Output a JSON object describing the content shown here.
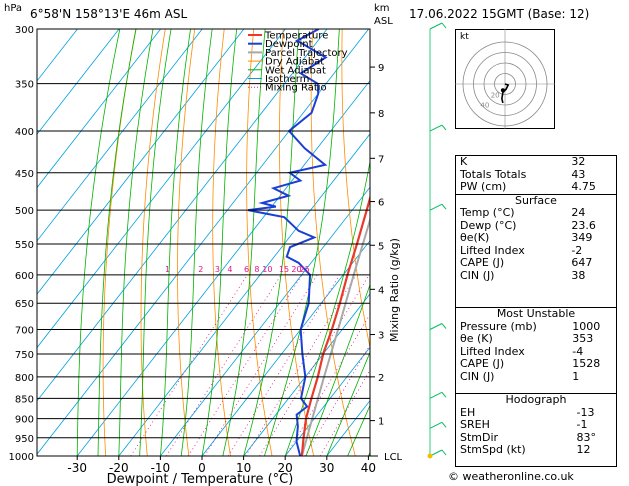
{
  "header": {
    "location": "6°58'N  158°13'E  46m  ASL",
    "hpa_label": "hPa",
    "km_label": "km",
    "asl_label": "ASL",
    "datetime": "17.06.2022  15GMT  (Base: 12)"
  },
  "credit": "© weatheronline.co.uk",
  "colors": {
    "temperature": "#e8392a",
    "dewpoint": "#1a3fd6",
    "parcel": "#a8a8a8",
    "dry_adiabat": "#ff8c00",
    "wet_adiabat": "#00b300",
    "isotherm": "#00a0e0",
    "mixing_ratio": "#e0158a",
    "hodograph_wind": "#000000",
    "flags": "#00c060"
  },
  "chart_data": {
    "type": "skewt",
    "xlabel": "Dewpoint / Temperature (°C)",
    "ylabel_right": "Mixing Ratio (g/kg)",
    "x_ticks": [
      "-30",
      "-20",
      "-10",
      "0",
      "10",
      "20",
      "30",
      "40"
    ],
    "x_tick_values": [
      -30,
      -20,
      -10,
      0,
      10,
      20,
      30,
      40
    ],
    "pressure_levels": [
      300,
      350,
      400,
      450,
      500,
      550,
      600,
      650,
      700,
      750,
      800,
      850,
      900,
      950,
      1000
    ],
    "km_ticks": [
      {
        "label": "1",
        "p": 905
      },
      {
        "label": "2",
        "p": 800
      },
      {
        "label": "3",
        "p": 710
      },
      {
        "label": "4",
        "p": 625
      },
      {
        "label": "5",
        "p": 552
      },
      {
        "label": "6",
        "p": 488
      },
      {
        "label": "7",
        "p": 432
      },
      {
        "label": "8",
        "p": 380
      },
      {
        "label": "9",
        "p": 334
      }
    ],
    "lcl_label": "LCL",
    "mixing_ratio_labels": [
      {
        "label": "1",
        "x": -3
      },
      {
        "label": "2",
        "x": 5
      },
      {
        "label": "3",
        "x": 9
      },
      {
        "label": "4",
        "x": 12
      },
      {
        "label": "6",
        "x": 16
      },
      {
        "label": "8",
        "x": 18.5
      },
      {
        "label": "10",
        "x": 21
      },
      {
        "label": "15",
        "x": 25
      },
      {
        "label": "20",
        "x": 28
      },
      {
        "label": "25",
        "x": 30
      }
    ],
    "legend": [
      "Temperature",
      "Dewpoint",
      "Parcel Trajectory",
      "Dry Adiabat",
      "Wet Adiabat",
      "Isotherm",
      "Mixing Ratio"
    ],
    "temperature": [
      {
        "p": 1000,
        "t": 24
      },
      {
        "p": 950,
        "t": 21
      },
      {
        "p": 900,
        "t": 18
      },
      {
        "p": 850,
        "t": 15.5
      },
      {
        "p": 800,
        "t": 13
      },
      {
        "p": 750,
        "t": 10
      },
      {
        "p": 700,
        "t": 7.5
      },
      {
        "p": 650,
        "t": 4.5
      },
      {
        "p": 600,
        "t": 1
      },
      {
        "p": 550,
        "t": -2.5
      },
      {
        "p": 500,
        "t": -6.5
      },
      {
        "p": 450,
        "t": -11
      },
      {
        "p": 400,
        "t": -17
      },
      {
        "p": 380,
        "t": -20
      },
      {
        "p": 350,
        "t": -24
      },
      {
        "p": 320,
        "t": -28
      },
      {
        "p": 300,
        "t": -33
      }
    ],
    "dewpoint": [
      {
        "p": 1000,
        "t": 23.6
      },
      {
        "p": 960,
        "t": 20
      },
      {
        "p": 920,
        "t": 17.5
      },
      {
        "p": 890,
        "t": 15
      },
      {
        "p": 870,
        "t": 16
      },
      {
        "p": 850,
        "t": 13
      },
      {
        "p": 800,
        "t": 10
      },
      {
        "p": 750,
        "t": 5
      },
      {
        "p": 700,
        "t": 0
      },
      {
        "p": 650,
        "t": -3
      },
      {
        "p": 600,
        "t": -8
      },
      {
        "p": 580,
        "t": -13
      },
      {
        "p": 570,
        "t": -17
      },
      {
        "p": 555,
        "t": -18
      },
      {
        "p": 540,
        "t": -14
      },
      {
        "p": 530,
        "t": -19
      },
      {
        "p": 510,
        "t": -25
      },
      {
        "p": 500,
        "t": -35
      },
      {
        "p": 495,
        "t": -29
      },
      {
        "p": 490,
        "t": -33
      },
      {
        "p": 480,
        "t": -28
      },
      {
        "p": 470,
        "t": -33
      },
      {
        "p": 460,
        "t": -28
      },
      {
        "p": 450,
        "t": -32
      },
      {
        "p": 440,
        "t": -25
      },
      {
        "p": 420,
        "t": -33
      },
      {
        "p": 400,
        "t": -40
      },
      {
        "p": 380,
        "t": -38
      },
      {
        "p": 360,
        "t": -40
      },
      {
        "p": 350,
        "t": -42
      },
      {
        "p": 340,
        "t": -48
      },
      {
        "p": 325,
        "t": -45
      },
      {
        "p": 310,
        "t": -55
      },
      {
        "p": 300,
        "t": -52
      }
    ],
    "parcel": [
      {
        "p": 1000,
        "t": 24
      },
      {
        "p": 900,
        "t": 19.5
      },
      {
        "p": 800,
        "t": 14.5
      },
      {
        "p": 700,
        "t": 9
      },
      {
        "p": 600,
        "t": 2.5
      },
      {
        "p": 500,
        "t": -5
      },
      {
        "p": 400,
        "t": -15
      },
      {
        "p": 300,
        "t": -29
      }
    ],
    "wind_flags": [
      {
        "p": 1000,
        "dir": 83,
        "spd": 12
      },
      {
        "p": 925,
        "dir": 90,
        "spd": 10
      },
      {
        "p": 850,
        "dir": 100,
        "spd": 10
      },
      {
        "p": 700,
        "dir": 90,
        "spd": 10
      },
      {
        "p": 500,
        "dir": 80,
        "spd": 10
      },
      {
        "p": 400,
        "dir": 70,
        "spd": 15
      },
      {
        "p": 300,
        "dir": 60,
        "spd": 5
      }
    ]
  },
  "hodograph": {
    "label": "kt",
    "rings": [
      10,
      20,
      30,
      40
    ],
    "ring_labels": [
      "20",
      "40"
    ],
    "trace": [
      [
        0,
        0
      ],
      [
        3,
        1
      ],
      [
        1,
        5
      ],
      [
        -2,
        8
      ],
      [
        -3,
        14
      ],
      [
        -2,
        18
      ]
    ],
    "storm": [
      -2,
      6
    ]
  },
  "indices": {
    "rows": [
      {
        "label": "K",
        "value": "32"
      },
      {
        "label": "Totals Totals",
        "value": "43"
      },
      {
        "label": "PW (cm)",
        "value": "4.75"
      }
    ]
  },
  "surface": {
    "title": "Surface",
    "rows": [
      {
        "label": "Temp (°C)",
        "value": "24"
      },
      {
        "label": "Dewp (°C)",
        "value": "23.6"
      },
      {
        "label": "θe(K)",
        "value": "349"
      },
      {
        "label": "Lifted Index",
        "value": "-2"
      },
      {
        "label": "CAPE (J)",
        "value": "647"
      },
      {
        "label": "CIN (J)",
        "value": "38"
      }
    ]
  },
  "unstable": {
    "title": "Most Unstable",
    "rows": [
      {
        "label": "Pressure (mb)",
        "value": "1000"
      },
      {
        "label": "θe (K)",
        "value": "353"
      },
      {
        "label": "Lifted Index",
        "value": "-4"
      },
      {
        "label": "CAPE (J)",
        "value": "1528"
      },
      {
        "label": "CIN (J)",
        "value": "1"
      }
    ]
  },
  "hodo_table": {
    "title": "Hodograph",
    "rows": [
      {
        "label": "EH",
        "value": "-13"
      },
      {
        "label": "SREH",
        "value": "-1"
      },
      {
        "label": "StmDir",
        "value": "83°"
      },
      {
        "label": "StmSpd (kt)",
        "value": "12"
      }
    ]
  }
}
